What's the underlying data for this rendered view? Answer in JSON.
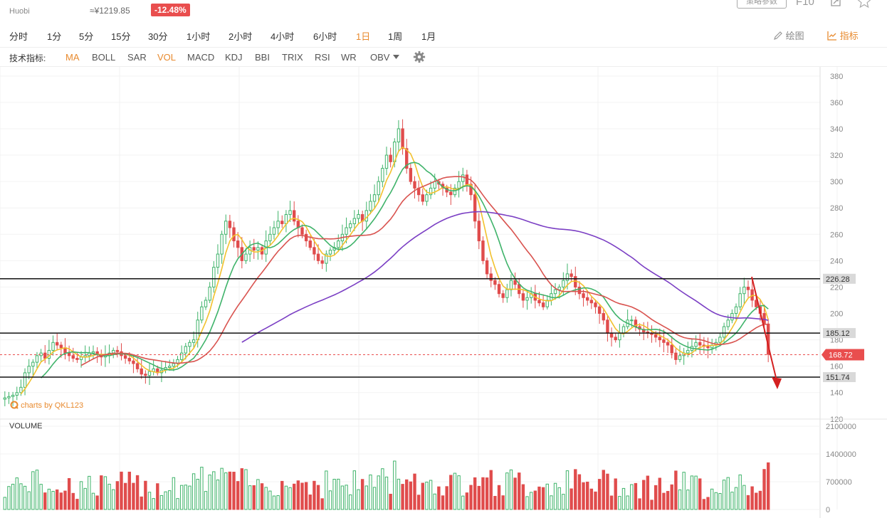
{
  "header": {
    "exchange": "Huobi",
    "cny_price": "≈¥1219.85",
    "change_pct": "-12.48%",
    "param_button": "策略参数",
    "f10_label": "F10"
  },
  "timeframes": [
    {
      "label": "分时",
      "active": false
    },
    {
      "label": "1分",
      "active": false
    },
    {
      "label": "5分",
      "active": false
    },
    {
      "label": "15分",
      "active": false
    },
    {
      "label": "30分",
      "active": false
    },
    {
      "label": "1小时",
      "active": false
    },
    {
      "label": "2小时",
      "active": false
    },
    {
      "label": "4小时",
      "active": false
    },
    {
      "label": "6小时",
      "active": false
    },
    {
      "label": "1日",
      "active": true
    },
    {
      "label": "1周",
      "active": false
    },
    {
      "label": "1月",
      "active": false
    }
  ],
  "tools": {
    "draw_label": "绘图",
    "indicator_label": "指标"
  },
  "indicators": {
    "label": "技术指标:",
    "items": [
      {
        "label": "MA",
        "active": true
      },
      {
        "label": "BOLL",
        "active": false
      },
      {
        "label": "SAR",
        "active": false
      },
      {
        "label": "VOL",
        "active": true
      },
      {
        "label": "MACD",
        "active": false
      },
      {
        "label": "KDJ",
        "active": false
      },
      {
        "label": "BBI",
        "active": false
      },
      {
        "label": "TRIX",
        "active": false
      },
      {
        "label": "RSI",
        "active": false
      },
      {
        "label": "WR",
        "active": false
      },
      {
        "label": "OBV",
        "active": false
      }
    ]
  },
  "watermark": "charts by QKL123",
  "volume_label": "VOLUME",
  "colors": {
    "up": "#3fb36a",
    "down": "#e04c4c",
    "ma5": "#f2c12e",
    "ma10": "#3fb36a",
    "ma20": "#d9534f",
    "ma60": "#7b3fc4",
    "accent": "#e88a2e",
    "current": "#e94e4e"
  },
  "chart_data": {
    "type": "candlestick",
    "price_axis": {
      "min": 120,
      "max": 380,
      "ticks": [
        "380",
        "360",
        "340",
        "320",
        "300",
        "280",
        "260",
        "240",
        "220",
        "200",
        "180",
        "160",
        "140",
        "120"
      ]
    },
    "volume_axis": {
      "min": 0,
      "max": 2100000,
      "ticks": [
        "2100000",
        "1400000",
        "700000",
        "0"
      ]
    },
    "horizontal_lines": [
      {
        "value": 226.28,
        "label": "226.28"
      },
      {
        "value": 185.12,
        "label": "185.12"
      },
      {
        "value": 151.74,
        "label": "151.74"
      }
    ],
    "current_price": {
      "value": 168.72,
      "label": "168.72"
    },
    "closes": [
      136,
      137,
      138,
      140,
      144,
      155,
      160,
      163,
      168,
      170,
      166,
      172,
      178,
      176,
      174,
      170,
      168,
      166,
      165,
      167,
      168,
      170,
      171,
      169,
      167,
      168,
      170,
      172,
      171,
      168,
      166,
      164,
      162,
      158,
      154,
      153,
      156,
      158,
      155,
      157,
      159,
      160,
      162,
      165,
      170,
      175,
      178,
      180,
      195,
      205,
      210,
      220,
      235,
      245,
      260,
      270,
      265,
      255,
      250,
      240,
      245,
      250,
      248,
      250,
      245,
      255,
      260,
      265,
      270,
      268,
      275,
      278,
      270,
      265,
      260,
      255,
      250,
      245,
      240,
      238,
      245,
      248,
      250,
      255,
      260,
      265,
      268,
      272,
      275,
      270,
      278,
      285,
      290,
      300,
      310,
      320,
      315,
      330,
      340,
      325,
      310,
      300,
      295,
      290,
      285,
      290,
      295,
      300,
      298,
      295,
      292,
      290,
      295,
      300,
      305,
      298,
      290,
      270,
      255,
      240,
      230,
      225,
      222,
      215,
      212,
      218,
      225,
      222,
      215,
      210,
      212,
      215,
      210,
      208,
      205,
      210,
      215,
      218,
      220,
      225,
      230,
      228,
      220,
      215,
      212,
      210,
      208,
      205,
      200,
      195,
      185,
      182,
      180,
      185,
      190,
      195,
      195,
      190,
      188,
      186,
      185,
      184,
      182,
      180,
      178,
      176,
      170,
      165,
      168,
      170,
      172,
      175,
      178,
      176,
      175,
      174,
      176,
      178,
      182,
      190,
      195,
      200,
      205,
      215,
      220,
      218,
      210,
      205,
      200,
      192,
      169
    ],
    "ma5_note": "MA lines are computed from closes",
    "annotation": {
      "type": "arrow",
      "color": "#d42020"
    }
  }
}
